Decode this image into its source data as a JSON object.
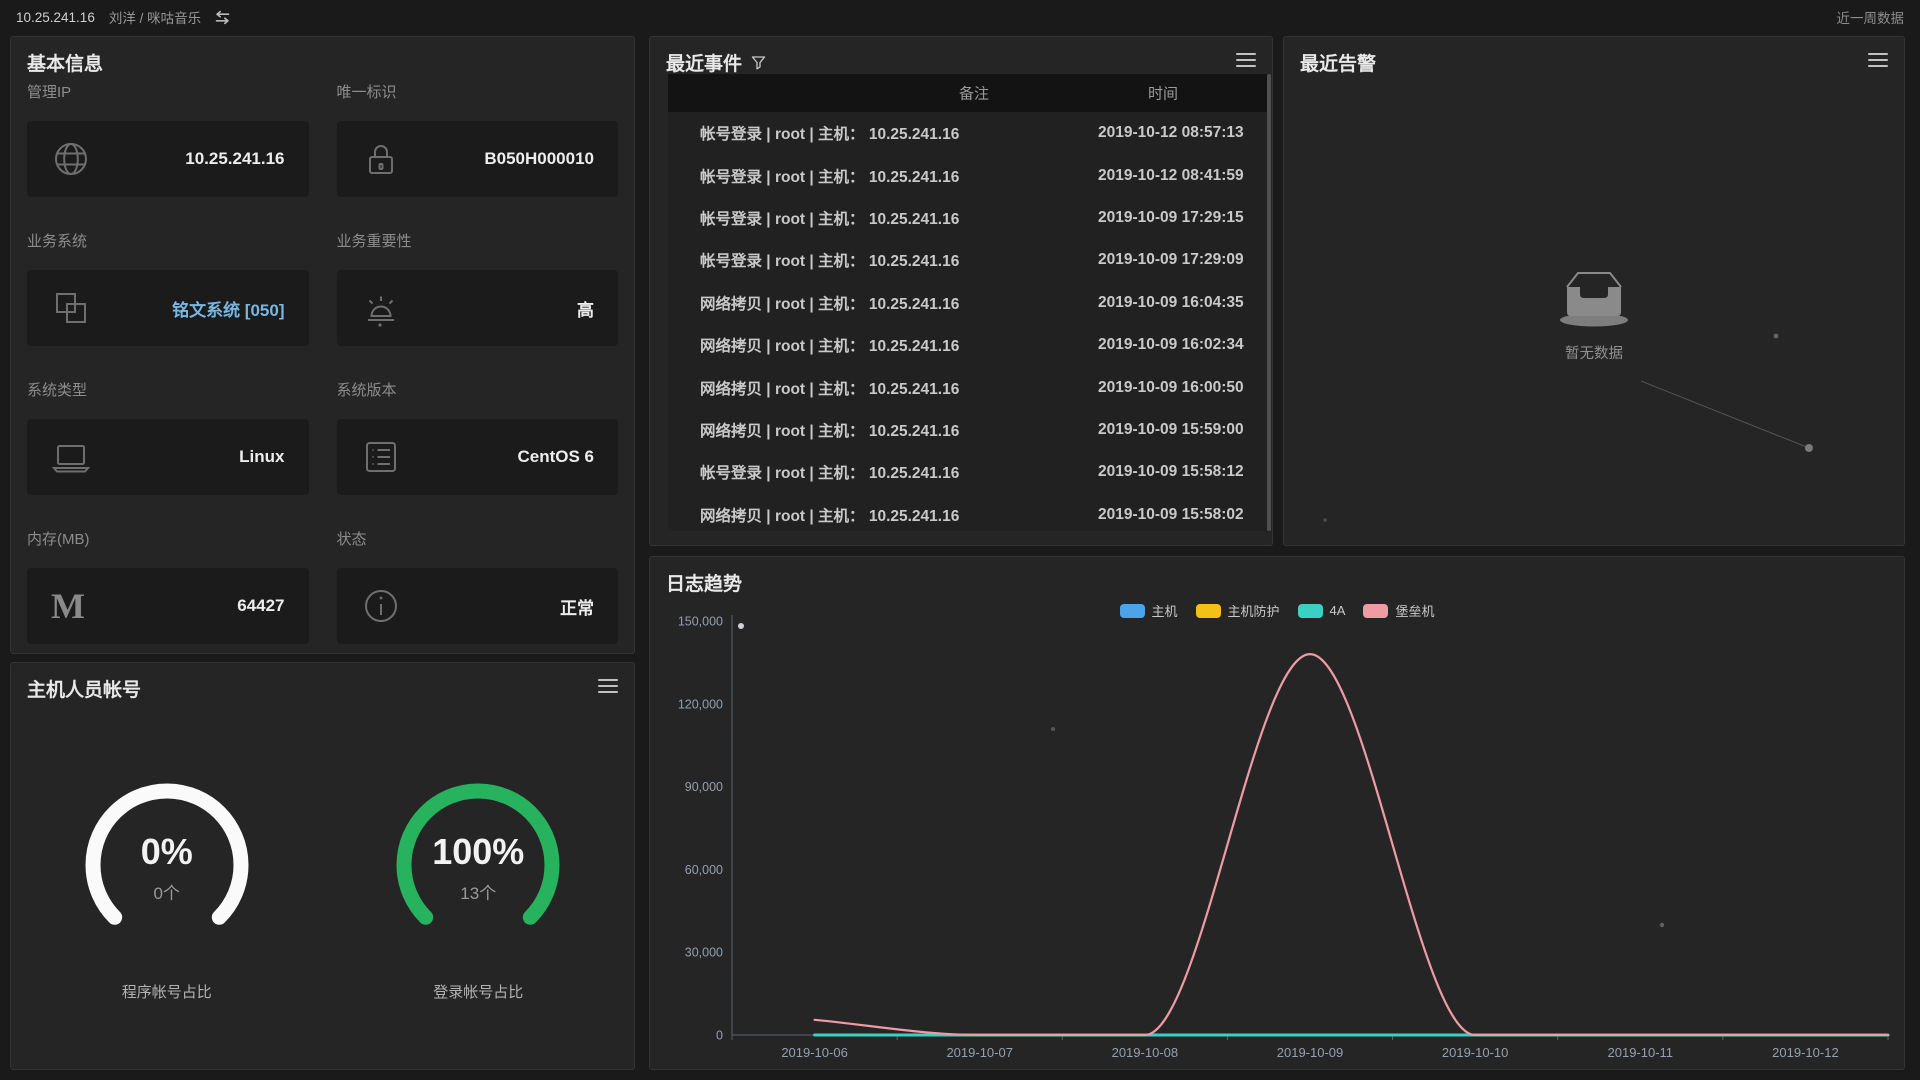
{
  "topbar": {
    "ip": "10.25.241.16",
    "user_path": "刘洋 / 咪咕音乐",
    "swap_icon": "swap-arrows-icon",
    "range_label": "近一周数据"
  },
  "basic_info": {
    "title": "基本信息",
    "fields": [
      {
        "label": "管理IP",
        "value": "10.25.241.16",
        "icon": "globe-icon"
      },
      {
        "label": "唯一标识",
        "value": "B050H000010",
        "icon": "lock-icon"
      },
      {
        "label": "业务系统",
        "value": "铭文系统 [050]",
        "icon": "overlapping-squares-icon",
        "value_color": "#79b7e3"
      },
      {
        "label": "业务重要性",
        "value": "高",
        "icon": "siren-icon"
      },
      {
        "label": "系统类型",
        "value": "Linux",
        "icon": "laptop-icon"
      },
      {
        "label": "系统版本",
        "value": "CentOS 6",
        "icon": "list-square-icon"
      },
      {
        "label": "内存(MB)",
        "value": "64427",
        "icon": "memory-m-icon"
      },
      {
        "label": "状态",
        "value": "正常",
        "icon": "info-circle-icon"
      }
    ]
  },
  "host_accounts": {
    "title": "主机人员帐号",
    "gauges": [
      {
        "percent": "0%",
        "count": "0个",
        "label": "程序帐号占比",
        "color": "#fafafa"
      },
      {
        "percent": "100%",
        "count": "13个",
        "label": "登录帐号占比",
        "color": "#27b25e"
      }
    ]
  },
  "recent_events": {
    "title": "最近事件",
    "filter_icon": "funnel-icon",
    "columns": [
      "备注",
      "时间"
    ],
    "rows": [
      {
        "note": "帐号登录 | root | 主机： 10.25.241.16",
        "time": "2019-10-12 08:57:13"
      },
      {
        "note": "帐号登录 | root | 主机： 10.25.241.16",
        "time": "2019-10-12 08:41:59"
      },
      {
        "note": "帐号登录 | root | 主机： 10.25.241.16",
        "time": "2019-10-09 17:29:15"
      },
      {
        "note": "帐号登录 | root | 主机： 10.25.241.16",
        "time": "2019-10-09 17:29:09"
      },
      {
        "note": "网络拷贝 | root | 主机： 10.25.241.16",
        "time": "2019-10-09 16:04:35"
      },
      {
        "note": "网络拷贝 | root | 主机： 10.25.241.16",
        "time": "2019-10-09 16:02:34"
      },
      {
        "note": "网络拷贝 | root | 主机： 10.25.241.16",
        "time": "2019-10-09 16:00:50"
      },
      {
        "note": "网络拷贝 | root | 主机： 10.25.241.16",
        "time": "2019-10-09 15:59:00"
      },
      {
        "note": "帐号登录 | root | 主机： 10.25.241.16",
        "time": "2019-10-09 15:58:12"
      },
      {
        "note": "网络拷贝 | root | 主机： 10.25.241.16",
        "time": "2019-10-09 15:58:02"
      }
    ]
  },
  "recent_alerts": {
    "title": "最近告警",
    "empty_icon": "empty-box-icon",
    "empty_text": "暂无数据"
  },
  "log_trend": {
    "title": "日志趋势",
    "chart_data": {
      "type": "line",
      "title": "日志趋势",
      "x": [
        "2019-10-06",
        "2019-10-07",
        "2019-10-08",
        "2019-10-09",
        "2019-10-10",
        "2019-10-11",
        "2019-10-12"
      ],
      "series": [
        {
          "name": "主机",
          "color": "#4da3e8",
          "values": [
            0,
            0,
            0,
            0,
            0,
            0,
            0
          ]
        },
        {
          "name": "主机防护",
          "color": "#f2c116",
          "values": [
            0,
            0,
            0,
            0,
            0,
            0,
            0
          ]
        },
        {
          "name": "4A",
          "color": "#3ad0c4",
          "values": [
            0,
            0,
            0,
            0,
            0,
            0,
            0
          ]
        },
        {
          "name": "堡垒机",
          "color": "#ee9ba4",
          "values": [
            5500,
            0,
            0,
            138000,
            0,
            0,
            0
          ]
        }
      ],
      "xlabel": "",
      "ylabel": "",
      "ylim": [
        0,
        150000
      ],
      "yticks": [
        0,
        30000,
        60000,
        90000,
        120000,
        150000
      ],
      "grid": false,
      "smooth": true,
      "legend_position": "top-center"
    }
  }
}
